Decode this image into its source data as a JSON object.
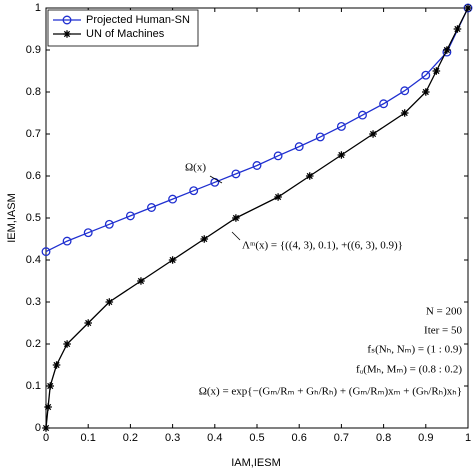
{
  "chart_data": {
    "type": "line",
    "xlabel": "IAM,IESM",
    "ylabel": "IEM,IASM",
    "xlim": [
      0,
      1
    ],
    "ylim": [
      0,
      1
    ],
    "xticks": [
      0,
      0.1,
      0.2,
      0.3,
      0.4,
      0.5,
      0.6,
      0.7,
      0.8,
      0.9,
      1
    ],
    "yticks": [
      0,
      0.1,
      0.2,
      0.3,
      0.4,
      0.5,
      0.6,
      0.7,
      0.8,
      0.9,
      1
    ],
    "grid": false,
    "legend": "upper left",
    "series": [
      {
        "name": "Projected Human-SN",
        "color": "#1f2fd0",
        "marker": "o",
        "x": [
          0,
          0.05,
          0.1,
          0.15,
          0.2,
          0.25,
          0.3,
          0.35,
          0.4,
          0.45,
          0.5,
          0.55,
          0.6,
          0.65,
          0.7,
          0.75,
          0.8,
          0.85,
          0.9,
          0.95,
          1
        ],
        "values": [
          0.42,
          0.445,
          0.465,
          0.485,
          0.505,
          0.525,
          0.545,
          0.565,
          0.585,
          0.605,
          0.625,
          0.648,
          0.67,
          0.693,
          0.718,
          0.745,
          0.772,
          0.803,
          0.84,
          0.895,
          1
        ]
      },
      {
        "name": "UN of Machines",
        "color": "#000000",
        "marker": "*",
        "x": [
          0,
          0.005,
          0.01,
          0.025,
          0.05,
          0.1,
          0.15,
          0.225,
          0.3,
          0.375,
          0.45,
          0.55,
          0.625,
          0.7,
          0.775,
          0.85,
          0.9,
          0.925,
          0.95,
          0.975,
          1
        ],
        "values": [
          0,
          0.05,
          0.1,
          0.15,
          0.2,
          0.25,
          0.3,
          0.35,
          0.4,
          0.45,
          0.5,
          0.55,
          0.6,
          0.65,
          0.7,
          0.75,
          0.8,
          0.85,
          0.9,
          0.95,
          1
        ]
      }
    ],
    "annotations": [
      "Ω(x)",
      "Λᵐ(x) = {((4, 3), 0.1), +((6, 3), 0.9)}",
      "N = 200",
      "Iter = 50",
      "fₛ(Nₕ, Nₘ) = (1 : 0.9)",
      "fᵤ(Mₕ, Mₘ) = (0.8 : 0.2)",
      "Ω(x) = exp{−(Gₘ/Rₘ + Gₕ/Rₕ) + (Gₘ/Rₘ)xₘ + (Gₕ/Rₕ)xₕ}"
    ]
  }
}
